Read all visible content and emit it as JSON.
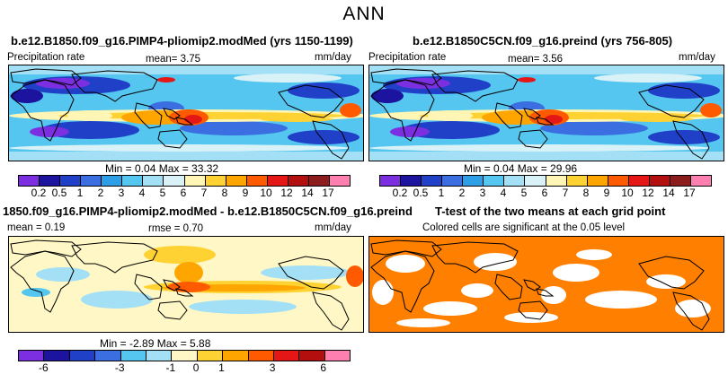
{
  "title": "ANN",
  "panels": [
    {
      "id": "p1",
      "title": "b.e12.B1850.f09_g16.PIMP4-pliomip2.modMed (yrs 1150-1199)",
      "left_label": "Precipitation rate",
      "center_label": "mean=   3.75",
      "right_label": "mm/day",
      "minmax": "Min =    0.04  Max =   33.32"
    },
    {
      "id": "p2",
      "title": "b.e12.B1850C5CN.f09_g16.preind (yrs 756-805)",
      "left_label": "Precipitation rate",
      "center_label": "mean=   3.56",
      "right_label": "mm/day",
      "minmax": "Min =    0.04  Max =   29.96"
    },
    {
      "id": "p3",
      "title": "1850.f09_g16.PIMP4-pliomip2.modMed - b.e12.B1850C5CN.f09_g16.preind",
      "left_label": "mean =   0.19",
      "center_label": "rmse =   0.70",
      "right_label": "mm/day",
      "minmax": "Min =   -2.89  Max =    5.88"
    },
    {
      "id": "p4",
      "title": "T-test of the two means at each grid point",
      "subtitle": "Colored cells are significant at the 0.05 level"
    }
  ],
  "chart_data": [
    {
      "type": "heatmap",
      "panel": "p1",
      "title": "b.e12.B1850.f09_g16.PIMP4-pliomip2.modMed (yrs 1150-1199)",
      "variable": "Precipitation rate",
      "units": "mm/day",
      "mean": 3.75,
      "min": 0.04,
      "max": 33.32,
      "contour_levels": [
        0.2,
        0.5,
        1,
        2,
        3,
        4,
        5,
        6,
        7,
        8,
        9,
        10,
        12,
        14,
        17
      ],
      "colorbar_labels": [
        "0.2",
        "0.5",
        "1",
        "2",
        "3",
        "4",
        "5",
        "6",
        "7",
        "8",
        "9",
        "10",
        "12",
        "14",
        "17"
      ]
    },
    {
      "type": "heatmap",
      "panel": "p2",
      "title": "b.e12.B1850C5CN.f09_g16.preind (yrs 756-805)",
      "variable": "Precipitation rate",
      "units": "mm/day",
      "mean": 3.56,
      "min": 0.04,
      "max": 29.96,
      "contour_levels": [
        0.2,
        0.5,
        1,
        2,
        3,
        4,
        5,
        6,
        7,
        8,
        9,
        10,
        12,
        14,
        17
      ],
      "colorbar_labels": [
        "0.2",
        "0.5",
        "1",
        "2",
        "3",
        "4",
        "5",
        "6",
        "7",
        "8",
        "9",
        "10",
        "12",
        "14",
        "17"
      ]
    },
    {
      "type": "heatmap",
      "panel": "p3",
      "title": "1850.f09_g16.PIMP4-pliomip2.modMed - b.e12.B1850C5CN.f09_g16.preind",
      "units": "mm/day",
      "mean": 0.19,
      "rmse": 0.7,
      "min": -2.89,
      "max": 5.88,
      "contour_levels": [
        -6,
        -5,
        -4,
        -3,
        -2,
        -1,
        0,
        1,
        2,
        3,
        4,
        5,
        6
      ],
      "colorbar_labels": [
        "-6",
        "-3",
        "-1",
        "0",
        "1",
        "3",
        "6"
      ]
    },
    {
      "type": "heatmap",
      "panel": "p4",
      "title": "T-test of the two means at each grid point",
      "subtitle": "Colored cells are significant at the 0.05 level",
      "significance_level": 0.05
    }
  ],
  "colors": {
    "abs_scale": [
      "#7b2fe0",
      "#1c139e",
      "#2140c8",
      "#3b6ee0",
      "#2e9ee6",
      "#55c6f0",
      "#a3e0f5",
      "#d8f2f8",
      "#fff5b5",
      "#ffd233",
      "#ffa500",
      "#ff5a00",
      "#e51616",
      "#b40f0f",
      "#8b1d1d",
      "#ff7fb0"
    ],
    "diff_scale": [
      "#7b2fe0",
      "#1c139e",
      "#2140c8",
      "#3b6ee0",
      "#55c6f0",
      "#a3e0f5",
      "#fff8c6",
      "#ffd233",
      "#ffa500",
      "#ff5a00",
      "#e51616",
      "#b40f0f",
      "#ff7fb0"
    ],
    "significant": "#ff7f00"
  }
}
